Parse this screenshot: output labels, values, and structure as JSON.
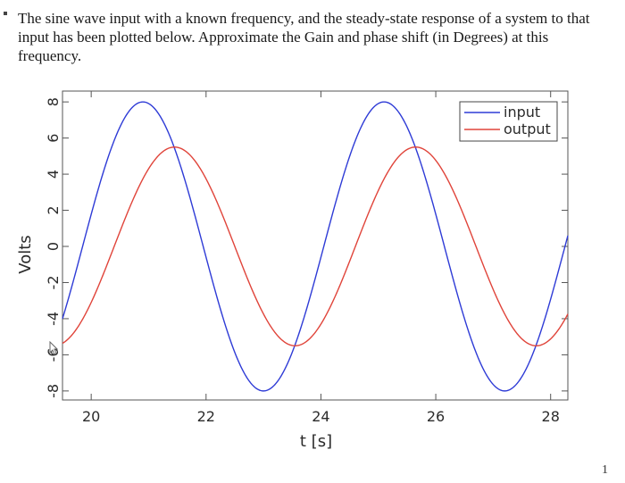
{
  "question": {
    "text": "The sine wave input with a known frequency, and the steady-state response of a system to that input has been plotted below. Approximate the Gain and phase shift (in Degrees) at this frequency."
  },
  "page_number": "1",
  "chart_data": {
    "type": "line",
    "title": "",
    "xlabel": "t [s]",
    "ylabel": "Volts",
    "xlim": [
      19.5,
      28.3
    ],
    "ylim": [
      -8.5,
      8.6
    ],
    "xticks": [
      20,
      22,
      24,
      26,
      28
    ],
    "yticks": [
      8,
      6,
      4,
      2,
      0,
      -2,
      -4,
      -6,
      -8
    ],
    "grid": false,
    "legend_position": "top-right",
    "series": [
      {
        "name": "input",
        "color": "#2e3bd6",
        "amplitude": 8,
        "period": 4.2,
        "peak_times": [
          20.9,
          25.1
        ],
        "trough_times": [
          23.0,
          27.2
        ]
      },
      {
        "name": "output",
        "color": "#e0443a",
        "amplitude": 5.5,
        "period": 4.2,
        "peak_times": [
          21.45,
          25.65
        ],
        "trough_times": [
          23.55,
          27.75
        ]
      }
    ]
  }
}
